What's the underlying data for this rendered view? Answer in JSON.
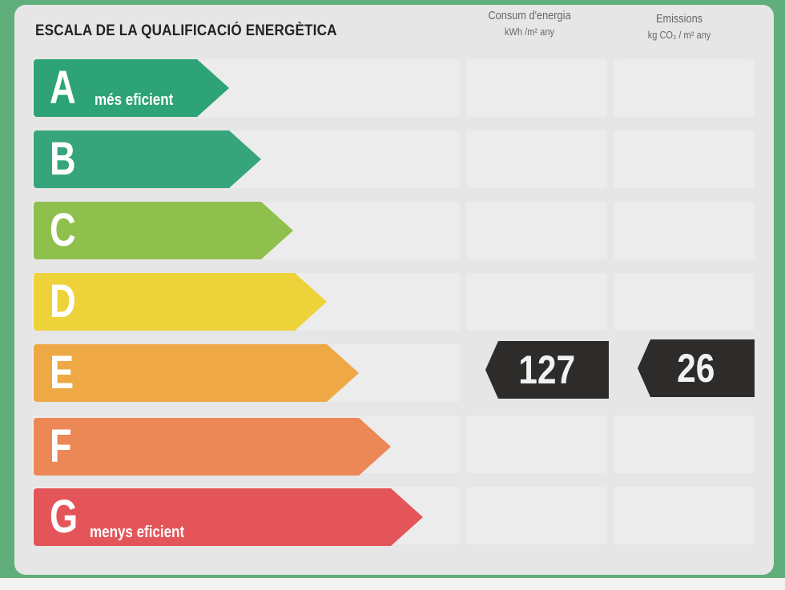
{
  "title": "ESCALA DE LA QUALIFICACIÓ ENERGÈTICA",
  "columns": {
    "energy": {
      "label": "Consum d'energia",
      "unit": "kWh /m² any"
    },
    "emissions": {
      "label": "Emissions",
      "unit": "kg CO₂ / m² any"
    }
  },
  "ratings": [
    {
      "letter": "A",
      "note": "més eficient",
      "color": "#2ea377"
    },
    {
      "letter": "B",
      "note": "",
      "color": "#36a57b"
    },
    {
      "letter": "C",
      "note": "",
      "color": "#8fc04d"
    },
    {
      "letter": "D",
      "note": "",
      "color": "#eed23a"
    },
    {
      "letter": "E",
      "note": "",
      "color": "#eea845"
    },
    {
      "letter": "F",
      "note": "",
      "color": "#ec8855"
    },
    {
      "letter": "G",
      "note": "menys eficient",
      "color": "#e4555a"
    }
  ],
  "result": {
    "rating": "E",
    "energy_value": "127",
    "emissions_value": "26"
  },
  "marker_color": "#2d2c2b"
}
